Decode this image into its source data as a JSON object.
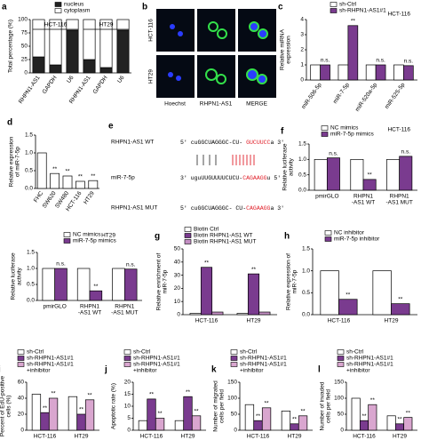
{
  "chart_data": [
    {
      "type": "bar",
      "panel_label": "a",
      "ylabel": "Total percentage (%)",
      "stacked": true,
      "rotate_labels": true,
      "categories": [
        "RHPN1-AS1",
        "GAPDH",
        "U6",
        "RHPN1-AS1",
        "GAPDH",
        "U6"
      ],
      "group_labels": [
        "HCT-116",
        "HT29"
      ],
      "series": [
        {
          "name": "nucleus",
          "color": "#222222",
          "values": [
            30,
            15,
            80,
            25,
            10,
            80
          ]
        },
        {
          "name": "cytoplasm",
          "color": "#ffffff",
          "values": [
            70,
            85,
            20,
            75,
            90,
            20
          ]
        }
      ],
      "ylim": [
        0,
        100
      ],
      "yticks": [
        0,
        25,
        50,
        75,
        100
      ]
    },
    {
      "type": "bar",
      "panel_label": "c",
      "title": "HCT-116",
      "ylabel": [
        "Relative miRNA",
        "expression"
      ],
      "rotate_labels": true,
      "categories": [
        "miR-506-5p",
        "miR-7-5p",
        "miR-520a-5p",
        "miR-525-5p"
      ],
      "series": [
        {
          "name": "sh-Ctrl",
          "color": "#ffffff",
          "values": [
            1,
            1,
            1,
            1
          ]
        },
        {
          "name": "sh-RHPN1-AS1#1",
          "color": "#7a3b8f",
          "values": [
            1.0,
            3.6,
            1.0,
            0.95
          ],
          "sig": [
            "n.s.",
            "**",
            "n.s.",
            "n.s."
          ]
        }
      ],
      "ylim": [
        0,
        4
      ],
      "yticks": [
        0,
        1,
        2,
        3,
        4
      ]
    },
    {
      "type": "bar",
      "panel_label": "d",
      "ylabel": [
        "Relative expression",
        "of miR-7-5p"
      ],
      "rotate_labels": true,
      "color": "#ffffff",
      "categories": [
        "FHC",
        "SW620",
        "SW480",
        "HCT-116",
        "HT29"
      ],
      "values": [
        1.0,
        0.42,
        0.35,
        0.2,
        0.22
      ],
      "sig": [
        null,
        "**",
        "**",
        "**",
        "**"
      ],
      "ylim": [
        0,
        1.5
      ],
      "yticks": [
        {
          "value": 0,
          "label": "0.0"
        },
        0.5,
        {
          "value": 1,
          "label": "1.0"
        },
        1.5
      ]
    },
    {
      "type": "bar",
      "panel_label": "f",
      "title": "HCT-116",
      "ylabel": [
        "Relative luciferase",
        "activity"
      ],
      "categories": [
        "pmirGLO",
        [
          "RHPN1",
          "-AS1 WT"
        ],
        [
          "RHPN1",
          "-AS1 MUT"
        ]
      ],
      "series": [
        {
          "name": "NC mimics",
          "color": "#ffffff",
          "values": [
            1,
            1,
            1
          ]
        },
        {
          "name": "miR-7-5p mimics",
          "color": "#7a3b8f",
          "values": [
            1.05,
            0.35,
            1.1
          ],
          "sig": [
            "n.s.",
            "**",
            "n.s."
          ]
        }
      ],
      "ylim": [
        0,
        1.5
      ],
      "yticks": [
        {
          "value": 0,
          "label": "0.0"
        },
        0.5,
        {
          "value": 1,
          "label": "1.0"
        },
        1.5
      ]
    },
    {
      "type": "bar",
      "title": "HT29",
      "ylabel": [
        "Relative luciferase",
        "activity"
      ],
      "categories": [
        "pmirGLO",
        [
          "RHPN1",
          "-AS1 WT"
        ],
        [
          "RHPN1",
          "-AS1 MUT"
        ]
      ],
      "series": [
        {
          "name": "NC mimics",
          "color": "#ffffff",
          "values": [
            1,
            1,
            1
          ]
        },
        {
          "name": "miR-7-5p mimics",
          "color": "#7a3b8f",
          "values": [
            1.0,
            0.3,
            0.98
          ],
          "sig": [
            "n.s.",
            "**",
            "n.s."
          ]
        }
      ],
      "ylim": [
        0,
        1.5
      ],
      "yticks": [
        {
          "value": 0,
          "label": "0.0"
        },
        0.5,
        {
          "value": 1,
          "label": "1.0"
        },
        1.5
      ]
    },
    {
      "type": "bar",
      "panel_label": "g",
      "ylabel": [
        "Relative enrichment of",
        "miR-7-5p"
      ],
      "categories": [
        "HCT-116",
        "HT29"
      ],
      "series": [
        {
          "name": "Biotin Ctrl",
          "color": "#ffffff",
          "values": [
            1,
            1
          ]
        },
        {
          "name": "Biotin RHPN1-AS1 WT",
          "color": "#7a3b8f",
          "values": [
            36,
            31
          ],
          "sig": [
            "**",
            "**"
          ]
        },
        {
          "name": "Biotin RHPN1-AS1  MUT",
          "color": "#c48fc4",
          "values": [
            2,
            2
          ]
        }
      ],
      "ylim": [
        0,
        50
      ],
      "yticks": [
        0,
        10,
        20,
        30,
        40,
        50
      ]
    },
    {
      "type": "bar",
      "panel_label": "h",
      "ylabel": [
        "Relative expression of",
        "miR-7-5p"
      ],
      "categories": [
        "HCT-116",
        "HT29"
      ],
      "series": [
        {
          "name": "NC inhibitor",
          "color": "#ffffff",
          "values": [
            1,
            1
          ]
        },
        {
          "name": "miR-7-5p inhibitor",
          "color": "#7a3b8f",
          "values": [
            0.35,
            0.25
          ],
          "sig": [
            "**",
            "**"
          ]
        }
      ],
      "ylim": [
        0,
        1.5
      ],
      "yticks": [
        {
          "value": 0,
          "label": "0.0"
        },
        0.5,
        {
          "value": 1,
          "label": "1.0"
        },
        1.5
      ]
    },
    {
      "type": "bar",
      "panel_label": "i",
      "ylabel": [
        "Percent of EdU-positive",
        "cells (%)"
      ],
      "categories": [
        "HCT-116",
        "HT29"
      ],
      "series": [
        {
          "name": "sh-Ctrl",
          "color": "#ffffff",
          "values": [
            45,
            42
          ]
        },
        {
          "name": "sh-RHPN1-AS1#1",
          "color": "#7a3b8f",
          "values": [
            22,
            20
          ],
          "sig": [
            "**",
            "**"
          ]
        },
        {
          "name": [
            "sh-RHPN1-AS1#1",
            "+inhibitor"
          ],
          "color": "#d9a6cf",
          "values": [
            40,
            38
          ],
          "sig": [
            "**",
            "**"
          ]
        }
      ],
      "ylim": [
        0,
        60
      ],
      "yticks": [
        0,
        20,
        40,
        60
      ]
    },
    {
      "type": "bar",
      "panel_label": "j",
      "ylabel": "Apoptotic rate (%)",
      "categories": [
        "HCT-116",
        "HT29"
      ],
      "series": [
        {
          "name": "sh-Ctrl",
          "color": "#ffffff",
          "values": [
            4,
            4
          ]
        },
        {
          "name": "sh-RHPN1-AS1#1",
          "color": "#7a3b8f",
          "values": [
            13,
            14
          ],
          "sig": [
            "**",
            "**"
          ]
        },
        {
          "name": [
            "sh-RHPN1-AS1#1",
            "+inhibitor"
          ],
          "color": "#d9a6cf",
          "values": [
            5,
            6
          ],
          "sig": [
            "**",
            "**"
          ]
        }
      ],
      "ylim": [
        0,
        20
      ],
      "yticks": [
        0,
        5,
        10,
        15,
        20
      ]
    },
    {
      "type": "bar",
      "panel_label": "k",
      "ylabel": [
        "Number of migrated",
        "cells per field"
      ],
      "categories": [
        "HCT-116",
        "HT29"
      ],
      "series": [
        {
          "name": "sh-Ctrl",
          "color": "#ffffff",
          "values": [
            80,
            60
          ]
        },
        {
          "name": "sh-RHPN1-AS1#1",
          "color": "#7a3b8f",
          "values": [
            30,
            20
          ],
          "sig": [
            "**",
            "**"
          ]
        },
        {
          "name": [
            "sh-RHPN1-AS1#1",
            "+inhibitor"
          ],
          "color": "#d9a6cf",
          "values": [
            70,
            45
          ],
          "sig": [
            "**",
            "**"
          ]
        }
      ],
      "ylim": [
        0,
        150
      ],
      "yticks": [
        0,
        50,
        100,
        150
      ]
    },
    {
      "type": "bar",
      "panel_label": "l",
      "ylabel": [
        "Number of invaded",
        "cells per field"
      ],
      "categories": [
        "HCT-116",
        "HT29"
      ],
      "series": [
        {
          "name": "sh-Ctrl",
          "color": "#ffffff",
          "values": [
            100,
            45
          ]
        },
        {
          "name": "sh-RHPN1-AS1#1",
          "color": "#7a3b8f",
          "values": [
            30,
            20
          ],
          "sig": [
            "**",
            "**"
          ]
        },
        {
          "name": [
            "sh-RHPN1-AS1#1",
            "+inhibitor"
          ],
          "color": "#d9a6cf",
          "values": [
            80,
            40
          ],
          "sig": [
            "**",
            "**"
          ]
        }
      ],
      "ylim": [
        0,
        150
      ],
      "yticks": [
        0,
        50,
        100,
        150
      ]
    }
  ],
  "image_panel": {
    "panel_label": "b",
    "rows": [
      "HCT-116",
      "HT29"
    ],
    "columns": [
      "Hoechst",
      "RHPN1-AS1",
      "MERGE"
    ]
  },
  "sequence_panel": {
    "panel_label": "e",
    "rows": [
      {
        "label": "RHPN1-AS1 WT",
        "seq": [
          {
            "text": "5' cuGGCUAGGGC-CU- ",
            "color": "#000000"
          },
          {
            "text": "GUCUUCC",
            "color": "#e0202a"
          },
          {
            "text": "a 3'",
            "color": "#000000"
          }
        ]
      },
      {
        "label": "miR-7-5p",
        "seq": [
          {
            "text": "3' uguUUGUUUUCUCU-",
            "color": "#000000"
          },
          {
            "text": "CAGAAGG",
            "color": "#e0202a"
          },
          {
            "text": "u 5'",
            "color": "#000000"
          }
        ]
      },
      {
        "label": "RHPN1-AS1 MUT",
        "seq": [
          {
            "text": "5' cuGGCUAGGGC- CU-",
            "color": "#000000"
          },
          {
            "text": "CAGAAGG",
            "color": "#e0202a"
          },
          {
            "text": "a 3'",
            "color": "#000000"
          }
        ]
      }
    ]
  }
}
